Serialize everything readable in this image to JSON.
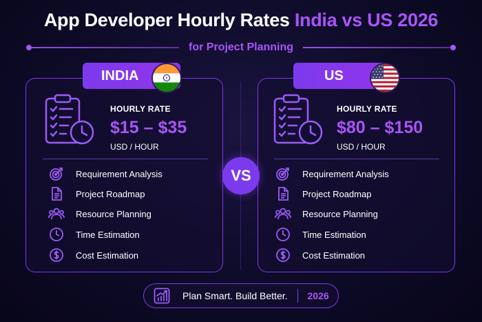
{
  "title": {
    "part1": "App Developer Hourly Rates ",
    "highlight": "India vs US 2026"
  },
  "subtitle": "for Project Planning",
  "vs_label": "VS",
  "india": {
    "country": "INDIA",
    "rate_label": "HOURLY RATE",
    "rate_value": "$15 – $35",
    "rate_unit": "USD / HOUR",
    "features": [
      {
        "label": "Requirement Analysis",
        "icon": "target-icon"
      },
      {
        "label": "Project Roadmap",
        "icon": "document-icon"
      },
      {
        "label": "Resource Planning",
        "icon": "team-icon"
      },
      {
        "label": "Time Estimation",
        "icon": "clock-icon"
      },
      {
        "label": "Cost Estimation",
        "icon": "dollar-icon"
      }
    ]
  },
  "us": {
    "country": "US",
    "rate_label": "HOURLY RATE",
    "rate_value": "$80 – $150",
    "rate_unit": "USD / HOUR",
    "features": [
      {
        "label": "Requirement Analysis",
        "icon": "target-icon"
      },
      {
        "label": "Project Roadmap",
        "icon": "document-icon"
      },
      {
        "label": "Resource Planning",
        "icon": "team-icon"
      },
      {
        "label": "Time Estimation",
        "icon": "clock-icon"
      },
      {
        "label": "Cost Estimation",
        "icon": "dollar-icon"
      }
    ]
  },
  "footer": {
    "tagline": "Plan Smart. Build Better.",
    "year": "2026",
    "icon": "chart-growth-icon"
  },
  "colors": {
    "accent": "#a855f7",
    "accent_dark": "#7c3aed",
    "background": "#0d0a26"
  }
}
